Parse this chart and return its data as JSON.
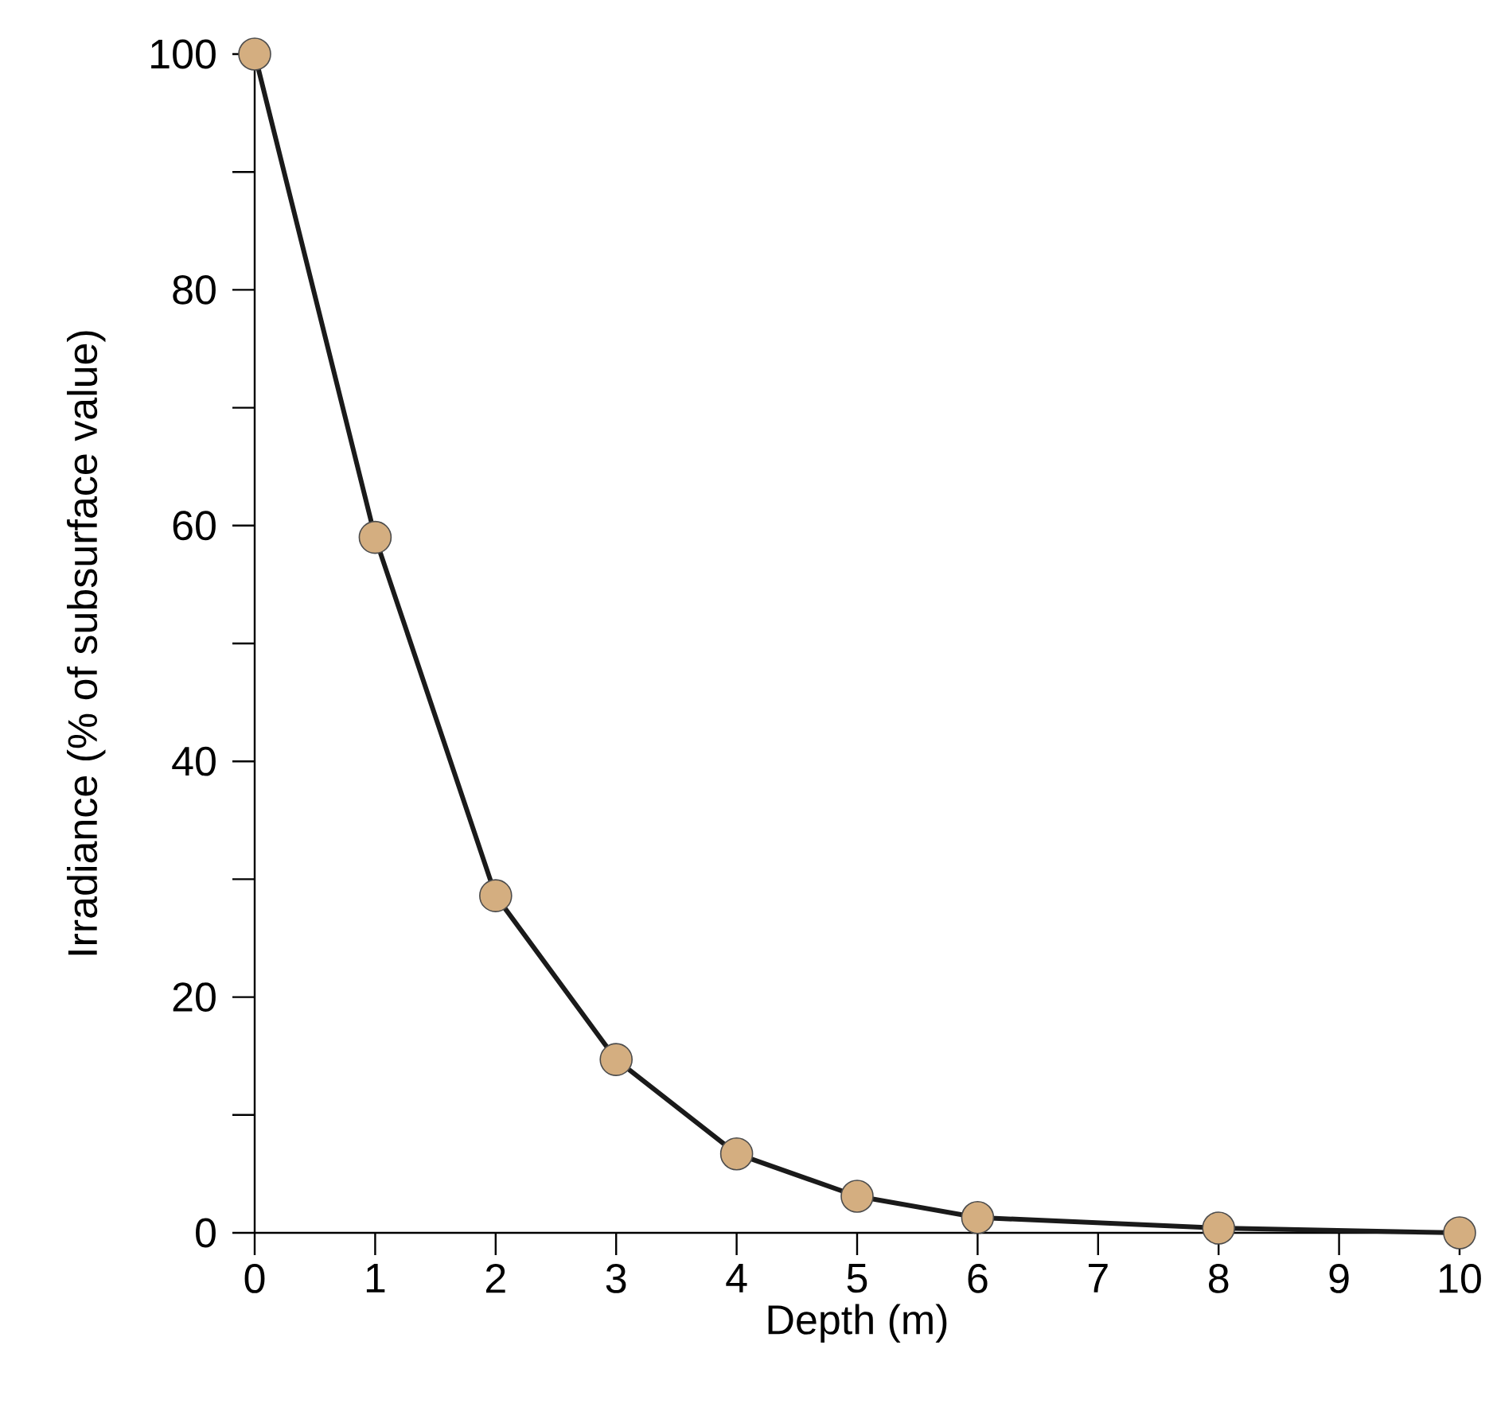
{
  "chart_data": {
    "type": "line",
    "xlabel": "Depth (m)",
    "ylabel": "Irradiance (% of subsurface value)",
    "x": [
      0,
      1,
      2,
      3,
      4,
      5,
      6,
      8,
      10
    ],
    "series": [
      {
        "color": "#1a1a1a",
        "colors": [
          "#d4ae80",
          "#d4ae80",
          "#d4ae80",
          "#d4ae80",
          "#d4ae80",
          "#d4ae80",
          "#d4ae80",
          "#d4ae80",
          "#d4ae80"
        ],
        "values": [
          100,
          59,
          28.6,
          14.7,
          6.7,
          3.1,
          1.3,
          0.4,
          0
        ]
      }
    ],
    "marker": "circle",
    "line_style": "solid",
    "xlim": [
      0,
      10
    ],
    "xticks": [
      0,
      1,
      2,
      3,
      4,
      5,
      6,
      7,
      8,
      9,
      10
    ],
    "ylim": [
      0,
      100
    ],
    "yticks": [
      0,
      {
        "value": 10,
        "label": null
      },
      20,
      {
        "value": 30,
        "label": null
      },
      40,
      {
        "value": 50,
        "label": null
      },
      60,
      {
        "value": 70,
        "label": null
      },
      80,
      {
        "value": 90,
        "label": null
      },
      100
    ],
    "grid": false
  }
}
